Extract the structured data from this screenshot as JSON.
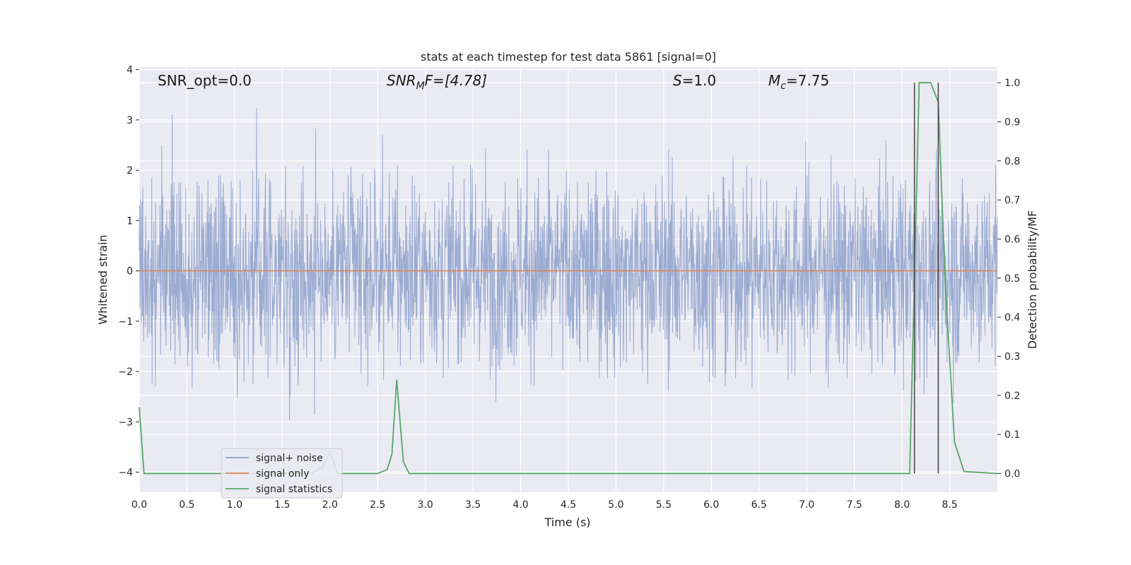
{
  "chart_data": {
    "type": "line",
    "title": "stats at each timestep for test data 5861 [signal=0]",
    "xlabel": "Time (s)",
    "ylabel": "Whitened strain",
    "y2label": "Detection probability/MF",
    "xlim": [
      0.0,
      9.0
    ],
    "ylim": [
      -4.4,
      4.05
    ],
    "y2lim": [
      -0.048,
      1.04
    ],
    "x_ticks": [
      "0.0",
      "0.5",
      "1.0",
      "1.5",
      "2.0",
      "2.5",
      "3.0",
      "3.5",
      "4.0",
      "4.5",
      "5.0",
      "5.5",
      "6.0",
      "6.5",
      "7.0",
      "7.5",
      "8.0",
      "8.5"
    ],
    "y_ticks": [
      "4",
      "3",
      "2",
      "1",
      "0",
      "−1",
      "−2",
      "−3",
      "−4"
    ],
    "y2_ticks": [
      "1.0",
      "0.9",
      "0.8",
      "0.7",
      "0.6",
      "0.5",
      "0.4",
      "0.3",
      "0.2",
      "0.1",
      "0.0"
    ],
    "grid": true,
    "legend_position": "lower-left",
    "annotations": {
      "snr_opt": "SNR_opt=0.0",
      "snr_mf_sym": "SNR",
      "snr_mf_sub": "M",
      "snr_mf_rest": "F=[4.78]",
      "s_sym": "S",
      "s_rest": "=1.0",
      "mc_sym": "M",
      "mc_sub": "c",
      "mc_rest": "=7.75"
    },
    "series": [
      {
        "name": "signal+ noise",
        "color": "#8da0cb",
        "kind": "noise",
        "amplitude_range": [
          -3.7,
          3.7
        ]
      },
      {
        "name": "signal only",
        "color": "#dd8452",
        "x": [
          0.0,
          9.0
        ],
        "y": [
          0.0,
          0.0
        ]
      },
      {
        "name": "signal statistics",
        "color": "#55a868",
        "axis": "right",
        "x": [
          0.0,
          0.05,
          0.12,
          1.8,
          1.92,
          2.0,
          2.08,
          2.5,
          2.6,
          2.65,
          2.7,
          2.77,
          2.83,
          8.08,
          8.18,
          8.22,
          8.3,
          8.38,
          8.45,
          8.55,
          8.65,
          9.0
        ],
        "y": [
          0.17,
          0.0,
          0.0,
          0.0,
          0.015,
          0.055,
          0.0,
          0.0,
          0.01,
          0.05,
          0.24,
          0.03,
          0.0,
          0.0,
          1.0,
          1.0,
          1.0,
          0.95,
          0.5,
          0.08,
          0.005,
          0.0
        ]
      }
    ],
    "vlines": [
      8.13,
      8.38
    ],
    "vline_color": "#444444"
  }
}
